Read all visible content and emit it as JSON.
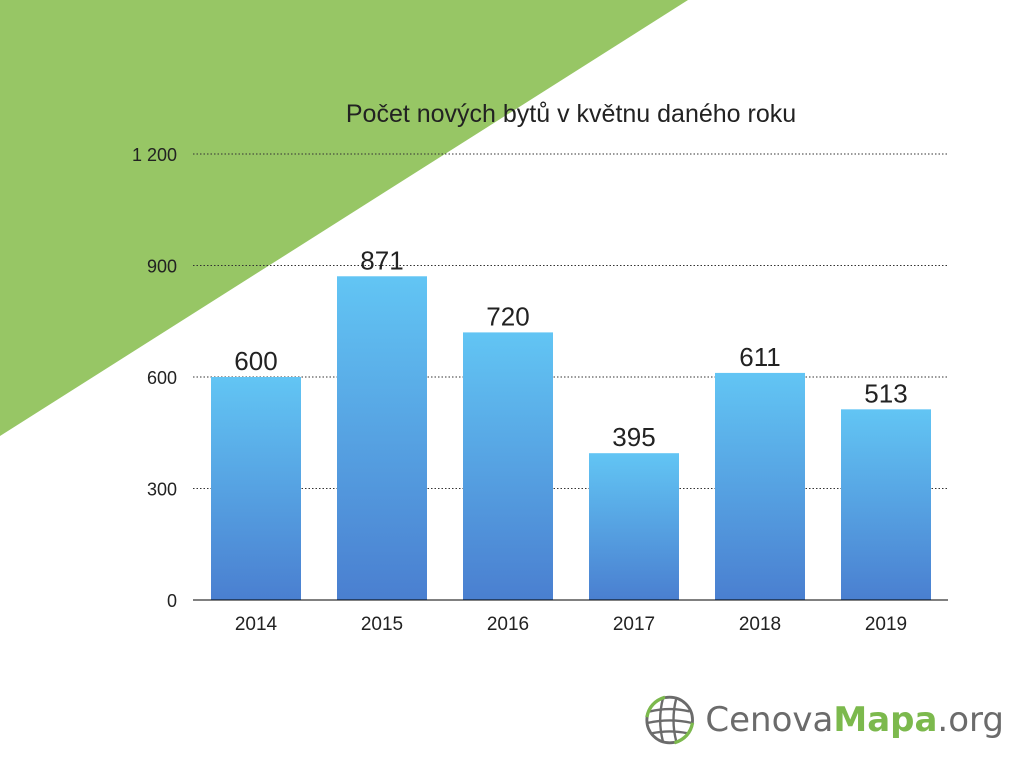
{
  "chart_data": {
    "type": "bar",
    "title": "Počet nových bytů v květnu daného roku",
    "categories": [
      "2014",
      "2015",
      "2016",
      "2017",
      "2018",
      "2019"
    ],
    "values": [
      600,
      871,
      720,
      395,
      611,
      513
    ],
    "value_labels": [
      "600",
      "871",
      "720",
      "395",
      "611",
      "513"
    ],
    "yticks": [
      0,
      300,
      600,
      900,
      1200
    ],
    "ytick_labels": [
      "0",
      "300",
      "600",
      "900",
      "1 200"
    ],
    "ylim": [
      0,
      1200
    ],
    "grid": "dotted horizontal",
    "xlabel": "",
    "ylabel": "",
    "colors": {
      "bar_top": "#62c5f4",
      "bar_bottom": "#4a7fd0",
      "decor_triangle": "#97c665",
      "grid": "#333333",
      "axis": "#000000",
      "text": "#222222"
    }
  },
  "logo": {
    "part1": "Cenova",
    "part2": "Mapa",
    "part3": ".org",
    "color_grey": "#6b6b6b",
    "color_green": "#7cb94d",
    "icon": "globe-grid-icon"
  }
}
